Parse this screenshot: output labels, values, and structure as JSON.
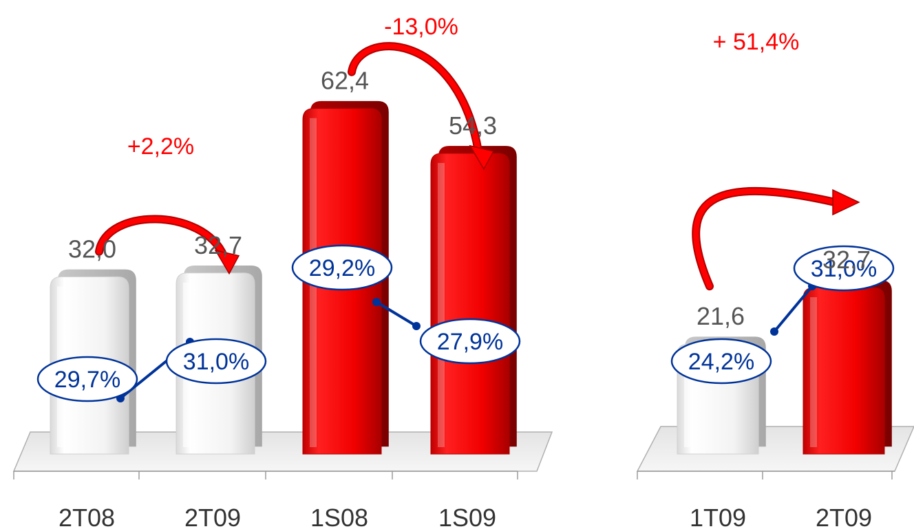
{
  "colors": {
    "highlight": "#ff0000",
    "neutral_bar": "#eeeeee",
    "margin_line": "#003399",
    "change_arrow": "#ff0000",
    "value_text": "#555555"
  },
  "chart_data": [
    {
      "type": "bar",
      "categories": [
        "2T08",
        "2T09",
        "1S08",
        "1S09"
      ],
      "values": [
        32.0,
        32.7,
        62.4,
        54.3
      ],
      "value_labels": [
        "32,0",
        "32,7",
        "62,4",
        "54,3"
      ],
      "bar_colors": [
        "#eeeeee",
        "#eeeeee",
        "#ff0000",
        "#ff0000"
      ],
      "ylim": [
        0,
        70
      ],
      "margin_series": {
        "values": [
          29.7,
          31.0,
          29.2,
          27.9
        ],
        "labels": [
          "29,7%",
          "31,0%",
          "29,2%",
          "27,9%"
        ],
        "links": [
          [
            0,
            1
          ],
          [
            2,
            3
          ]
        ]
      },
      "changes": [
        {
          "from": 0,
          "to": 1,
          "label": "+2,2%"
        },
        {
          "from": 2,
          "to": 3,
          "label": "-13,0%"
        }
      ]
    },
    {
      "type": "bar",
      "categories": [
        "1T09",
        "2T09"
      ],
      "values": [
        21.6,
        32.7
      ],
      "value_labels": [
        "21,6",
        "32,7"
      ],
      "bar_colors": [
        "#eeeeee",
        "#ff0000"
      ],
      "ylim": [
        0,
        70
      ],
      "margin_series": {
        "values": [
          24.2,
          31.0
        ],
        "labels": [
          "24,2%",
          "31,0%"
        ],
        "links": [
          [
            0,
            1
          ]
        ]
      },
      "changes": [
        {
          "from": 0,
          "to": 1,
          "label": "+ 51,4%"
        }
      ]
    }
  ]
}
